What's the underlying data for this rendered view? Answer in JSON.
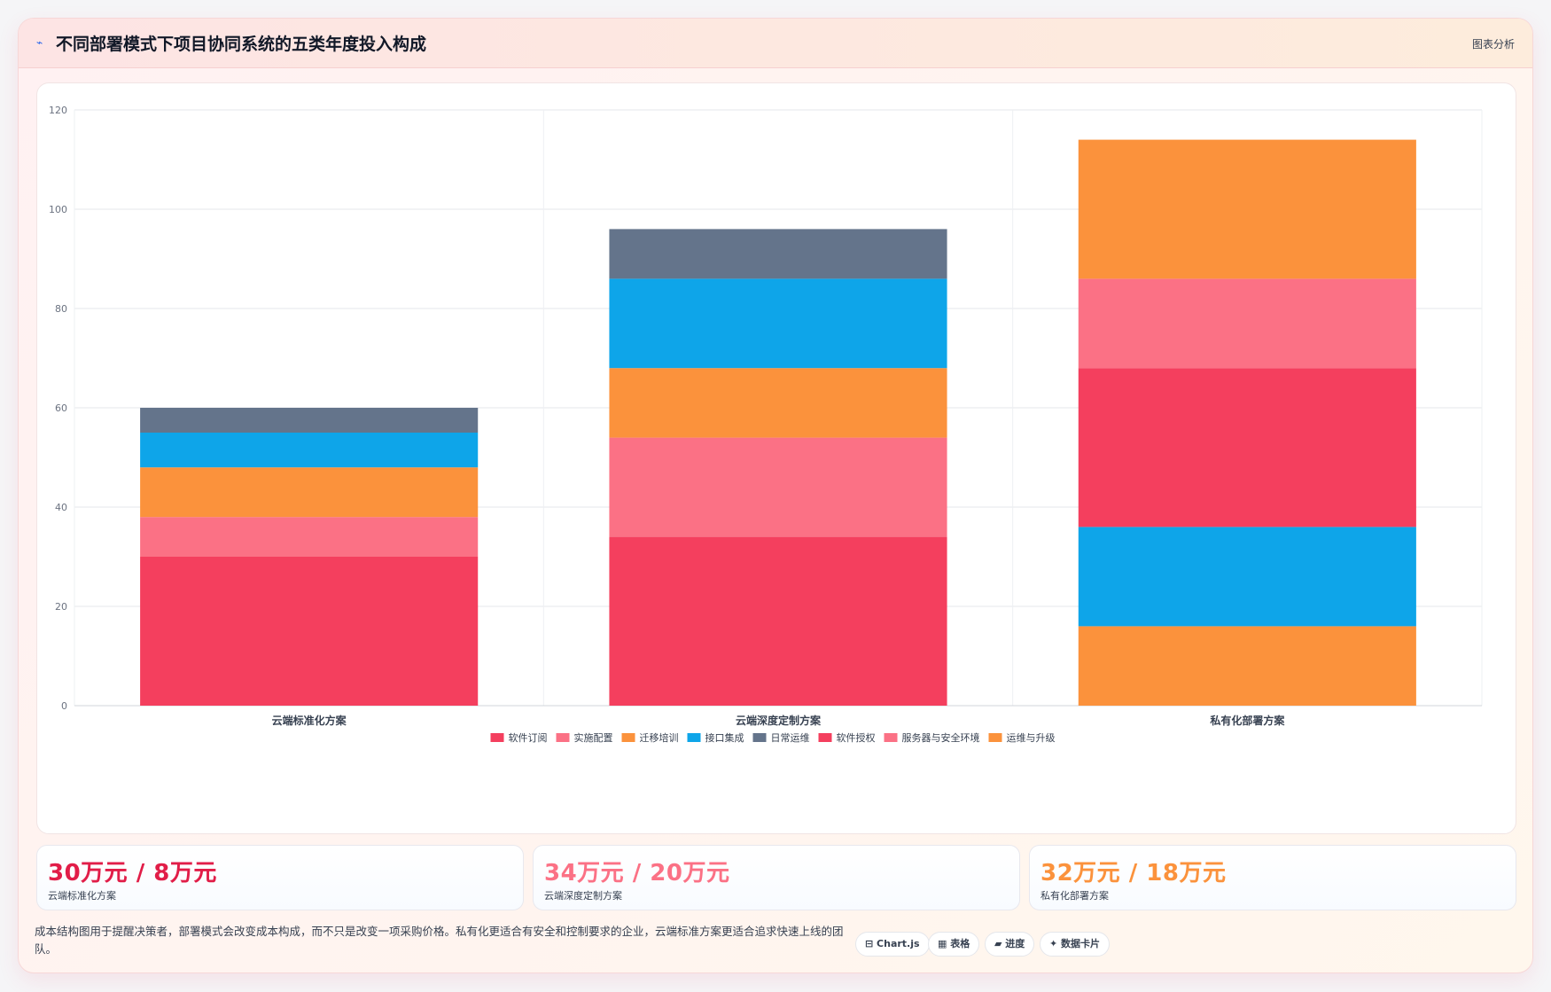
{
  "header": {
    "icon": "chart-line-icon",
    "title": "不同部署模式下项目协同系统的五类年度投入构成",
    "tag": "图表分析"
  },
  "chart_data": {
    "type": "bar",
    "stacked": true,
    "categories": [
      "云端标准化方案",
      "云端深度定制方案",
      "私有化部署方案"
    ],
    "ylim": [
      0,
      120
    ],
    "yticks": [
      0,
      20,
      40,
      60,
      80,
      100,
      120
    ],
    "grid": true,
    "legend_position": "bottom",
    "series": [
      {
        "name": "软件订阅",
        "color": "#f43f5e",
        "values": [
          30,
          34,
          0
        ]
      },
      {
        "name": "实施配置",
        "color": "#fb7185",
        "values": [
          8,
          20,
          0
        ]
      },
      {
        "name": "迁移培训",
        "color": "#fb923c",
        "values": [
          10,
          14,
          0
        ]
      },
      {
        "name": "接口集成",
        "color": "#0ea5e9",
        "values": [
          7,
          18,
          0
        ]
      },
      {
        "name": "日常运维",
        "color": "#64748b",
        "values": [
          5,
          10,
          0
        ]
      },
      {
        "name": "软件授权",
        "color": "#f43f5e",
        "values": [
          0,
          0,
          32
        ]
      },
      {
        "name": "服务器与安全环境",
        "color": "#fb7185",
        "values": [
          0,
          0,
          18
        ]
      },
      {
        "name": "运维与升级",
        "color": "#fb923c",
        "values": [
          0,
          0,
          28
        ]
      }
    ],
    "extra_segments_bottom": [
      {
        "category": "私有化部署方案",
        "color": "#fb923c",
        "value": 16
      },
      {
        "category": "私有化部署方案",
        "color": "#0ea5e9",
        "value": 20
      }
    ]
  },
  "stats": [
    {
      "value": "30万元 / 8万元",
      "label": "云端标准化方案",
      "color": "#e11d48"
    },
    {
      "value": "34万元 / 20万元",
      "label": "云端深度定制方案",
      "color": "#fb7185"
    },
    {
      "value": "32万元 / 18万元",
      "label": "私有化部署方案",
      "color": "#fb923c"
    }
  ],
  "footer": {
    "note": "成本结构图用于提醒决策者，部署模式会改变成本构成，而不只是改变一项采购价格。私有化更适合有安全和控制要求的企业，云端标准方案更适合追求快速上线的团队。",
    "chips": [
      {
        "label": "⊟ Chart.js",
        "icon": "chart-icon"
      },
      {
        "label": "▦ 表格",
        "icon": "table-icon"
      },
      {
        "label": "▰ 进度",
        "icon": "progress-icon"
      },
      {
        "label": "✦ 数据卡片",
        "icon": "card-icon"
      }
    ]
  }
}
